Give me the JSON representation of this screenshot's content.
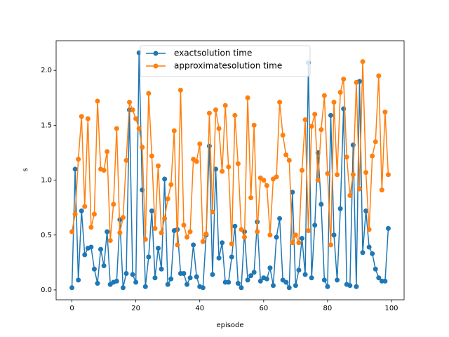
{
  "chart_data": {
    "type": "line",
    "xlabel": "episode",
    "ylabel": "s",
    "x": [
      0,
      1,
      2,
      3,
      4,
      5,
      6,
      7,
      8,
      9,
      10,
      11,
      12,
      13,
      14,
      15,
      16,
      17,
      18,
      19,
      20,
      21,
      22,
      23,
      24,
      25,
      26,
      27,
      28,
      29,
      30,
      31,
      32,
      33,
      34,
      35,
      36,
      37,
      38,
      39,
      40,
      41,
      42,
      43,
      44,
      45,
      46,
      47,
      48,
      49,
      50,
      51,
      52,
      53,
      54,
      55,
      56,
      57,
      58,
      59,
      60,
      61,
      62,
      63,
      64,
      65,
      66,
      67,
      68,
      69,
      70,
      71,
      72,
      73,
      74,
      75,
      76,
      77,
      78,
      79,
      80,
      81,
      82,
      83,
      84,
      85,
      86,
      87,
      88,
      89,
      90,
      91,
      92,
      93,
      94,
      95,
      96,
      97,
      98,
      99
    ],
    "series": [
      {
        "name": "exactsolution time",
        "color": "#1f77b4",
        "values": [
          0.02,
          1.1,
          0.09,
          0.72,
          0.32,
          0.38,
          0.39,
          0.19,
          0.06,
          0.37,
          0.22,
          0.53,
          0.05,
          0.07,
          0.08,
          0.64,
          0.02,
          0.15,
          1.64,
          0.14,
          0.07,
          2.16,
          0.91,
          0.03,
          0.3,
          0.72,
          0.11,
          0.38,
          0.19,
          1.01,
          0.05,
          0.1,
          0.54,
          0.55,
          0.15,
          0.15,
          0.05,
          0.11,
          0.41,
          0.12,
          0.03,
          0.02,
          0.5,
          1.31,
          0.14,
          1.1,
          0.29,
          0.43,
          0.07,
          0.07,
          0.3,
          0.58,
          0.06,
          0.02,
          0.53,
          0.09,
          0.13,
          0.16,
          0.62,
          0.08,
          0.11,
          0.1,
          0.2,
          0.04,
          0.48,
          0.65,
          0.09,
          0.07,
          0.02,
          0.89,
          0.04,
          0.18,
          0.47,
          0.14,
          2.07,
          0.11,
          0.59,
          1.25,
          0.78,
          0.09,
          0.03,
          1.59,
          0.5,
          0.09,
          0.74,
          1.65,
          0.05,
          0.04,
          1.32,
          0.03,
          1.9,
          0.34,
          0.72,
          0.39,
          0.33,
          0.19,
          0.11,
          0.08,
          0.08,
          0.56
        ]
      },
      {
        "name": "approximatesolution time",
        "color": "#ff7f0e",
        "values": [
          0.53,
          0.69,
          1.19,
          1.58,
          0.76,
          1.56,
          0.57,
          0.69,
          1.72,
          1.1,
          1.09,
          1.26,
          0.45,
          0.78,
          1.47,
          0.52,
          0.66,
          1.18,
          1.71,
          1.64,
          1.56,
          1.47,
          1.3,
          0.46,
          1.79,
          1.22,
          0.56,
          1.13,
          0.52,
          0.65,
          0.83,
          0.96,
          1.45,
          0.41,
          1.82,
          0.59,
          0.48,
          0.53,
          1.19,
          1.17,
          1.33,
          0.44,
          0.51,
          1.61,
          0.71,
          1.64,
          1.47,
          1.08,
          1.68,
          1.12,
          0.42,
          1.59,
          1.15,
          0.55,
          0.48,
          1.75,
          0.84,
          1.5,
          0.53,
          1.02,
          1.0,
          0.95,
          0.5,
          1.01,
          1.03,
          1.71,
          1.41,
          1.23,
          1.18,
          0.43,
          0.5,
          0.43,
          1.09,
          1.55,
          0.54,
          1.49,
          1.6,
          1.0,
          1.46,
          1.77,
          1.06,
          0.41,
          1.71,
          1.05,
          1.8,
          1.92,
          1.21,
          0.86,
          1.05,
          1.89,
          0.92,
          2.08,
          1.07,
          0.55,
          1.22,
          1.35,
          1.95,
          0.91,
          1.62,
          1.05
        ]
      }
    ],
    "xlim": [
      -4.95,
      103.95
    ],
    "xticks": [
      0,
      20,
      40,
      60,
      80,
      100
    ],
    "ylim": [
      -0.09,
      2.27
    ],
    "yticks": [
      {
        "value": 0,
        "label": "0.0"
      },
      0.5,
      {
        "value": 1,
        "label": "1.0"
      },
      1.5,
      {
        "value": 2,
        "label": "2.0"
      }
    ],
    "legend": "upper center",
    "markers": true
  }
}
